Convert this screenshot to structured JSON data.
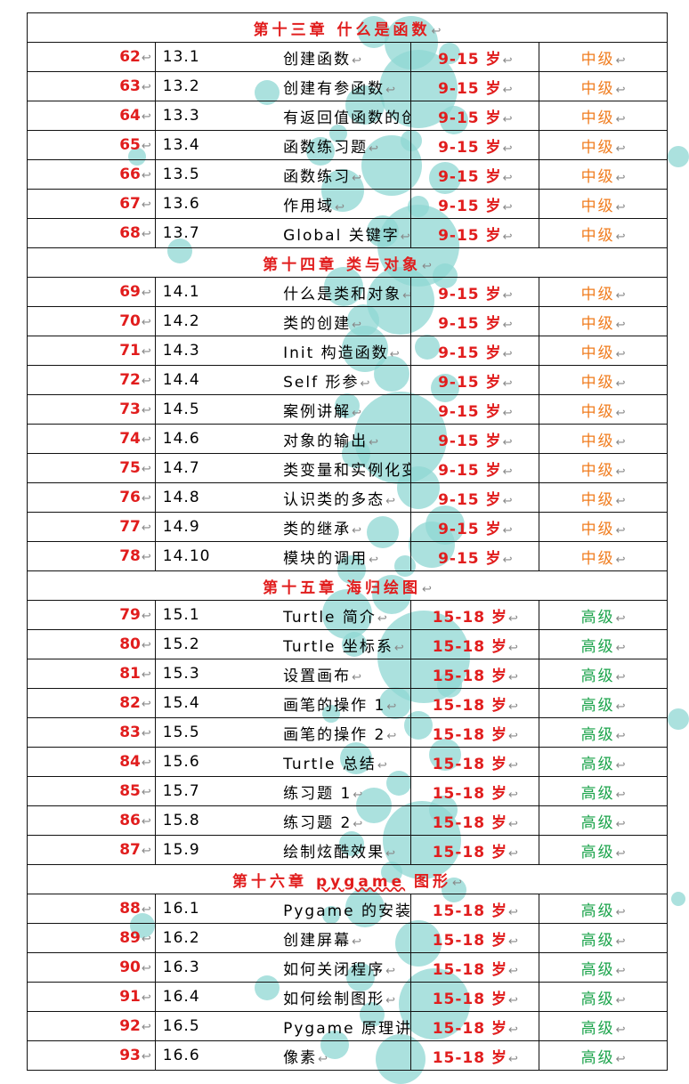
{
  "return_mark": "↩",
  "rows": [
    {
      "type": "chapter",
      "title": "第十三章  什么是函数"
    },
    {
      "type": "lesson",
      "num": "62",
      "section": "13.1",
      "title": "创建函数",
      "age": "9-15 岁",
      "level": "中级"
    },
    {
      "type": "lesson",
      "num": "63",
      "section": "13.2",
      "title": "创建有参函数",
      "age": "9-15 岁",
      "level": "中级"
    },
    {
      "type": "lesson",
      "num": "64",
      "section": "13.3",
      "title": "有返回值函数的创建",
      "age": "9-15 岁",
      "level": "中级"
    },
    {
      "type": "lesson",
      "num": "65",
      "section": "13.4",
      "title": "函数练习题",
      "age": "9-15 岁",
      "level": "中级"
    },
    {
      "type": "lesson",
      "num": "66",
      "section": "13.5",
      "title": "函数练习",
      "age": "9-15 岁",
      "level": "中级"
    },
    {
      "type": "lesson",
      "num": "67",
      "section": "13.6",
      "title": "作用域",
      "age": "9-15 岁",
      "level": "中级"
    },
    {
      "type": "lesson",
      "num": "68",
      "section": "13.7",
      "title": "Global 关键字",
      "age": "9-15 岁",
      "level": "中级"
    },
    {
      "type": "chapter",
      "title": "第十四章  类与对象"
    },
    {
      "type": "lesson",
      "num": "69",
      "section": "14.1",
      "title": "什么是类和对象",
      "age": "9-15 岁",
      "level": "中级"
    },
    {
      "type": "lesson",
      "num": "70",
      "section": "14.2",
      "title": "类的创建",
      "age": "9-15 岁",
      "level": "中级"
    },
    {
      "type": "lesson",
      "num": "71",
      "section": "14.3",
      "title": "Init 构造函数",
      "age": "9-15 岁",
      "level": "中级"
    },
    {
      "type": "lesson",
      "num": "72",
      "section": "14.4",
      "title": "Self 形参",
      "age": "9-15 岁",
      "level": "中级"
    },
    {
      "type": "lesson",
      "num": "73",
      "section": "14.5",
      "title": "案例讲解",
      "age": "9-15 岁",
      "level": "中级"
    },
    {
      "type": "lesson",
      "num": "74",
      "section": "14.6",
      "title": "对象的输出",
      "age": "9-15 岁",
      "level": "中级"
    },
    {
      "type": "lesson",
      "num": "75",
      "section": "14.7",
      "title": "类变量和实例化变量",
      "age": "9-15 岁",
      "level": "中级"
    },
    {
      "type": "lesson",
      "num": "76",
      "section": "14.8",
      "title": "认识类的多态",
      "age": "9-15 岁",
      "level": "中级"
    },
    {
      "type": "lesson",
      "num": "77",
      "section": "14.9",
      "title": "类的继承",
      "age": "9-15 岁",
      "level": "中级"
    },
    {
      "type": "lesson",
      "num": "78",
      "section": "14.10",
      "title": "模块的调用",
      "age": "9-15 岁",
      "level": "中级"
    },
    {
      "type": "chapter",
      "title": "第十五章  海归绘图"
    },
    {
      "type": "lesson",
      "num": "79",
      "section": "15.1",
      "title": "Turtle 简介",
      "age": "15-18 岁",
      "level": "高级"
    },
    {
      "type": "lesson",
      "num": "80",
      "section": "15.2",
      "title": "Turtle 坐标系",
      "age": "15-18 岁",
      "level": "高级"
    },
    {
      "type": "lesson",
      "num": "81",
      "section": "15.3",
      "title": "设置画布",
      "age": "15-18 岁",
      "level": "高级"
    },
    {
      "type": "lesson",
      "num": "82",
      "section": "15.4",
      "title": "画笔的操作 1",
      "age": "15-18 岁",
      "level": "高级"
    },
    {
      "type": "lesson",
      "num": "83",
      "section": "15.5",
      "title": "画笔的操作 2",
      "age": "15-18 岁",
      "level": "高级"
    },
    {
      "type": "lesson",
      "num": "84",
      "section": "15.6",
      "title": "Turtle 总结",
      "age": "15-18 岁",
      "level": "高级"
    },
    {
      "type": "lesson",
      "num": "85",
      "section": "15.7",
      "title": "练习题 1",
      "age": "15-18 岁",
      "level": "高级"
    },
    {
      "type": "lesson",
      "num": "86",
      "section": "15.8",
      "title": "练习题 2",
      "age": "15-18 岁",
      "level": "高级"
    },
    {
      "type": "lesson",
      "num": "87",
      "section": "15.9",
      "title": "绘制炫酷效果",
      "age": "15-18 岁",
      "level": "高级"
    },
    {
      "type": "chapter",
      "title": "第十六章  pygame 图形"
    },
    {
      "type": "lesson",
      "num": "88",
      "section": "16.1",
      "title": "Pygame 的安装",
      "age": "15-18 岁",
      "level": "高级"
    },
    {
      "type": "lesson",
      "num": "89",
      "section": "16.2",
      "title": "创建屏幕",
      "age": "15-18 岁",
      "level": "高级"
    },
    {
      "type": "lesson",
      "num": "90",
      "section": "16.3",
      "title": "如何关闭程序",
      "age": "15-18 岁",
      "level": "高级"
    },
    {
      "type": "lesson",
      "num": "91",
      "section": "16.4",
      "title": "如何绘制图形",
      "age": "15-18 岁",
      "level": "高级"
    },
    {
      "type": "lesson",
      "num": "92",
      "section": "16.5",
      "title": "Pygame 原理讲解",
      "age": "15-18 岁",
      "level": "高级"
    },
    {
      "type": "lesson",
      "num": "93",
      "section": "16.6",
      "title": "像素",
      "age": "15-18 岁",
      "level": "高级"
    }
  ],
  "colors": {
    "number": "#e11d1d",
    "chapter": "#e11d1d",
    "age": "#e11d1d",
    "level_mid": "#f07c1e",
    "level_high": "#1aa34a",
    "bubble": "#8fd7d3"
  }
}
